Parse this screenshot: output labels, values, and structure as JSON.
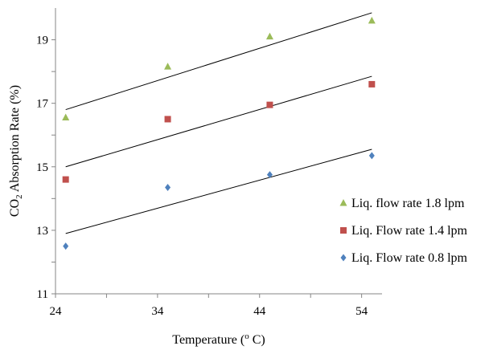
{
  "chart_data": {
    "type": "scatter",
    "title": "",
    "xlabel": "Temperature (",
    "xlabel_sup": "o",
    "xlabel_tail": " C)",
    "ylabel": "CO",
    "ylabel_sub": "2",
    "ylabel_tail": " Absorption Rate (%)",
    "xlim": [
      24,
      56
    ],
    "ylim": [
      11,
      20
    ],
    "x_ticks": [
      24,
      34,
      44,
      54
    ],
    "y_ticks": [
      11,
      13,
      15,
      17,
      19
    ],
    "grid": false,
    "legend_position": "right",
    "series": [
      {
        "name": "Liq. flow rate 1.8 lpm",
        "marker": "triangle",
        "color": "#9BBB59",
        "x": [
          25,
          35,
          45,
          55
        ],
        "y": [
          16.55,
          18.15,
          19.1,
          19.6
        ],
        "trendline": [
          [
            25,
            16.8
          ],
          [
            55,
            19.85
          ]
        ]
      },
      {
        "name": "Liq. Flow rate 1.4 lpm",
        "marker": "square",
        "color": "#C0504D",
        "x": [
          25,
          35,
          45,
          55
        ],
        "y": [
          14.6,
          16.5,
          16.95,
          17.6
        ],
        "trendline": [
          [
            25,
            15.0
          ],
          [
            55,
            17.85
          ]
        ]
      },
      {
        "name": "Liq. Flow rate 0.8 lpm",
        "marker": "diamond",
        "color": "#4F81BD",
        "x": [
          25,
          35,
          45,
          55
        ],
        "y": [
          12.5,
          14.35,
          14.75,
          15.35
        ],
        "trendline": [
          [
            25,
            12.9
          ],
          [
            55,
            15.55
          ]
        ]
      }
    ]
  }
}
